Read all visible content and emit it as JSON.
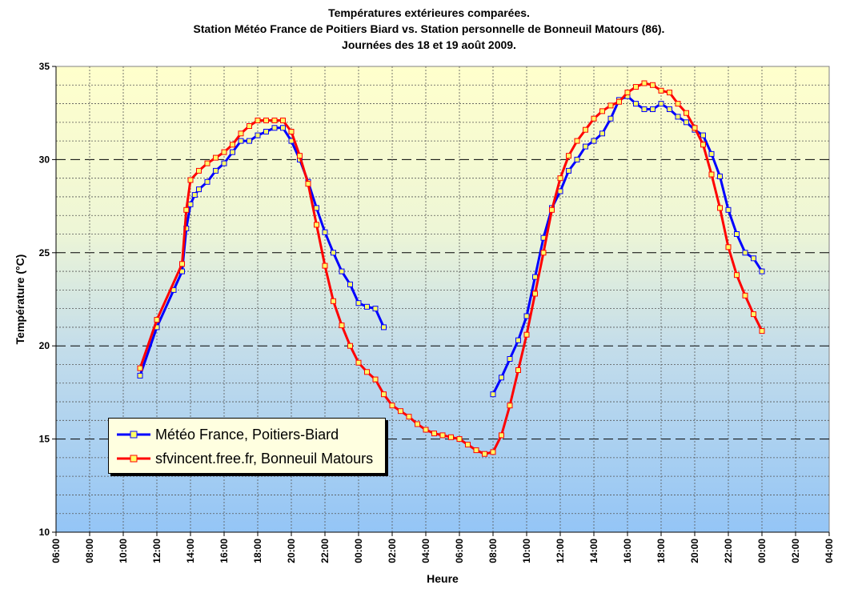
{
  "chart_data": {
    "type": "line",
    "title": "Températures extérieures comparées.",
    "subtitle": "Station Météo France de Poitiers Biard vs. Station personnelle de Bonneuil Matours (86).",
    "subtitle2": "Journées des 18 et 19 août 2009.",
    "xlabel": "Heure",
    "ylabel": "Température (°C)",
    "ylim": [
      10,
      35
    ],
    "y_ticks": [
      10,
      15,
      20,
      25,
      30,
      35
    ],
    "xlim": [
      6,
      52
    ],
    "x_ticks": [
      6,
      8,
      10,
      12,
      14,
      16,
      18,
      20,
      22,
      24,
      26,
      28,
      30,
      32,
      34,
      36,
      38,
      40,
      42,
      44,
      46,
      48,
      50,
      52
    ],
    "x_tick_labels": [
      "06:00",
      "08:00",
      "10:00",
      "12:00",
      "14:00",
      "16:00",
      "18:00",
      "20:00",
      "22:00",
      "00:00",
      "02:00",
      "04:00",
      "06:00",
      "08:00",
      "10:00",
      "12:00",
      "14:00",
      "16:00",
      "18:00",
      "20:00",
      "22:00",
      "00:00",
      "02:00",
      "04:00"
    ],
    "grid": true,
    "legend_position": "bottom-left",
    "series": [
      {
        "name": "Météo France, Poitiers-Biard",
        "color": "#0000ff",
        "marker_fill": "#ffff66",
        "x": [
          11,
          12,
          13,
          13.5,
          13.75,
          14,
          14.25,
          14.5,
          15,
          15.5,
          16,
          16.5,
          17,
          17.5,
          18,
          18.5,
          19,
          19.5,
          20,
          20.5,
          21,
          21.5,
          22,
          22.5,
          23,
          23.5,
          24,
          24.5,
          25,
          25.5,
          32,
          32.5,
          33,
          33.5,
          34,
          34.5,
          35,
          35.5,
          36,
          36.5,
          37,
          37.5,
          38,
          38.5,
          39,
          39.5,
          40,
          40.5,
          41,
          41.5,
          42,
          42.5,
          43,
          43.5,
          44,
          44.5,
          45,
          45.5,
          46,
          46.5,
          47,
          47.5,
          48
        ],
        "y": [
          18.4,
          21.0,
          23.0,
          24.0,
          26.3,
          27.6,
          28.1,
          28.4,
          28.8,
          29.4,
          29.8,
          30.4,
          31.0,
          31.0,
          31.3,
          31.5,
          31.7,
          31.7,
          31.0,
          30.0,
          28.8,
          27.4,
          26.1,
          25.0,
          24.0,
          23.3,
          22.3,
          22.1,
          22.0,
          21.0,
          17.4,
          18.3,
          19.3,
          20.3,
          21.6,
          23.7,
          25.8,
          27.4,
          28.3,
          29.4,
          30.0,
          30.7,
          31.0,
          31.4,
          32.2,
          33.2,
          33.4,
          33.0,
          32.7,
          32.7,
          33.0,
          32.7,
          32.3,
          32.0,
          31.6,
          31.3,
          30.3,
          29.1,
          27.3,
          26.0,
          25.0,
          24.7,
          24.0
        ]
      },
      {
        "name": "sfvincent.free.fr, Bonneuil Matours",
        "color": "#ff0000",
        "marker_fill": "#ffff66",
        "x": [
          11,
          12,
          13.5,
          13.75,
          14,
          14.5,
          15,
          15.5,
          16,
          16.5,
          17,
          17.5,
          18,
          18.5,
          19,
          19.5,
          20,
          20.5,
          21,
          21.5,
          22,
          22.5,
          23,
          23.5,
          24,
          24.5,
          25,
          25.5,
          26,
          26.5,
          27,
          27.5,
          28,
          28.5,
          29,
          29.5,
          30,
          30.5,
          31,
          31.5,
          32,
          32.5,
          33,
          33.5,
          34,
          34.5,
          35,
          35.5,
          36,
          36.5,
          37,
          37.5,
          38,
          38.5,
          39,
          39.5,
          40,
          40.5,
          41,
          41.5,
          42,
          42.5,
          43,
          43.5,
          44,
          44.5,
          45,
          45.5,
          46,
          46.5,
          47,
          47.5,
          48
        ],
        "y": [
          18.8,
          21.4,
          24.4,
          27.3,
          28.9,
          29.4,
          29.8,
          30.1,
          30.4,
          30.8,
          31.4,
          31.8,
          32.1,
          32.1,
          32.1,
          32.1,
          31.5,
          30.2,
          28.7,
          26.5,
          24.3,
          22.4,
          21.1,
          20.0,
          19.1,
          18.6,
          18.2,
          17.4,
          16.8,
          16.5,
          16.2,
          15.8,
          15.5,
          15.3,
          15.2,
          15.1,
          15.0,
          14.7,
          14.4,
          14.2,
          14.3,
          15.2,
          16.8,
          18.7,
          20.6,
          22.8,
          25.0,
          27.3,
          29.0,
          30.2,
          31.0,
          31.6,
          32.2,
          32.6,
          32.9,
          33.1,
          33.6,
          33.9,
          34.1,
          34.0,
          33.7,
          33.6,
          33.0,
          32.5,
          31.7,
          30.8,
          29.2,
          27.4,
          25.3,
          23.8,
          22.7,
          21.7,
          20.8
        ]
      }
    ]
  }
}
